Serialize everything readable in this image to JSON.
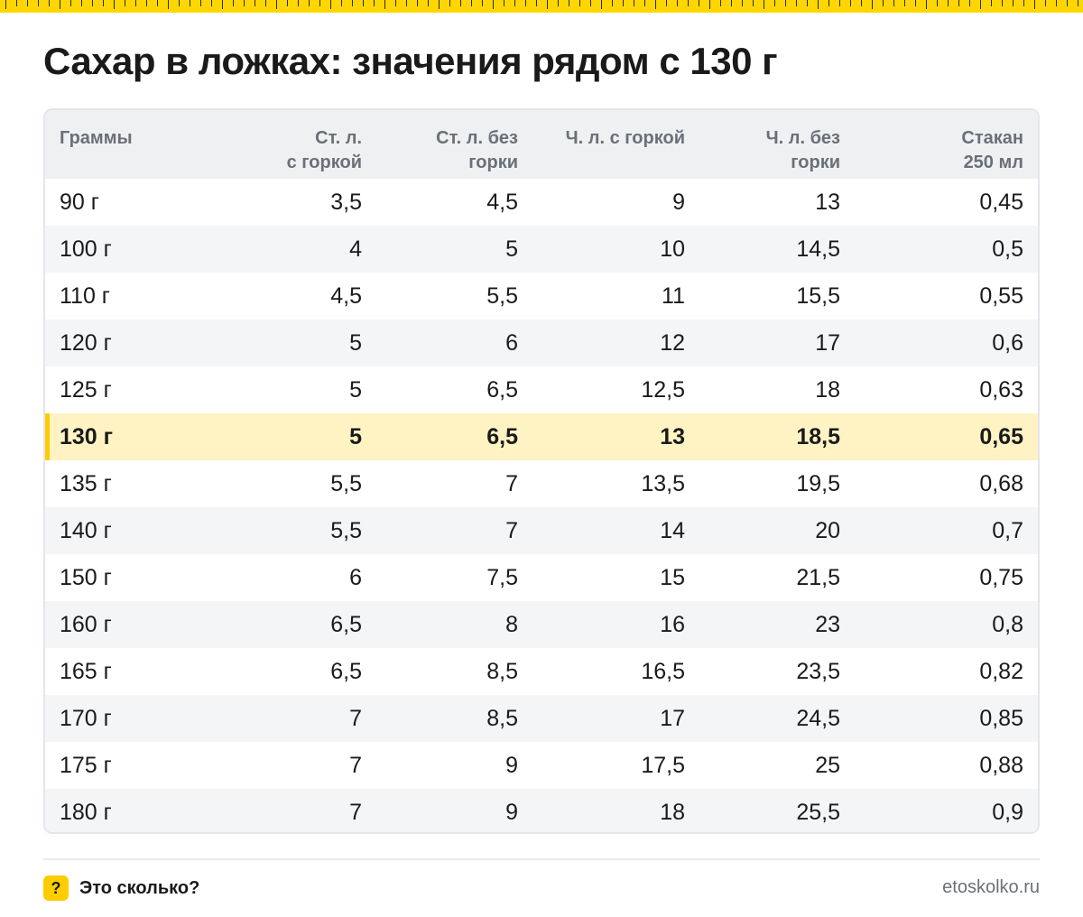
{
  "title": "Сахар в ложках: значения рядом с 130 г",
  "table": {
    "headers": [
      [
        "Граммы"
      ],
      [
        "Ст. л.",
        "с горкой"
      ],
      [
        "Ст. л. без",
        "горки"
      ],
      [
        "Ч. л. с горкой"
      ],
      [
        "Ч. л. без",
        "горки"
      ],
      [
        "Стакан",
        "250 мл"
      ]
    ],
    "highlighted_row": 5,
    "rows": [
      [
        "90 г",
        "3,5",
        "4,5",
        "9",
        "13",
        "0,45"
      ],
      [
        "100 г",
        "4",
        "5",
        "10",
        "14,5",
        "0,5"
      ],
      [
        "110 г",
        "4,5",
        "5,5",
        "11",
        "15,5",
        "0,55"
      ],
      [
        "120 г",
        "5",
        "6",
        "12",
        "17",
        "0,6"
      ],
      [
        "125 г",
        "5",
        "6,5",
        "12,5",
        "18",
        "0,63"
      ],
      [
        "130 г",
        "5",
        "6,5",
        "13",
        "18,5",
        "0,65"
      ],
      [
        "135 г",
        "5,5",
        "7",
        "13,5",
        "19,5",
        "0,68"
      ],
      [
        "140 г",
        "5,5",
        "7",
        "14",
        "20",
        "0,7"
      ],
      [
        "150 г",
        "6",
        "7,5",
        "15",
        "21,5",
        "0,75"
      ],
      [
        "160 г",
        "6,5",
        "8",
        "16",
        "23",
        "0,8"
      ],
      [
        "165 г",
        "6,5",
        "8,5",
        "16,5",
        "23,5",
        "0,82"
      ],
      [
        "170 г",
        "7",
        "8,5",
        "17",
        "24,5",
        "0,85"
      ],
      [
        "175 г",
        "7",
        "9",
        "17,5",
        "25",
        "0,88"
      ],
      [
        "180 г",
        "7",
        "9",
        "18",
        "25,5",
        "0,9"
      ]
    ]
  },
  "footer": {
    "badge": "?",
    "brand": "Это сколько?",
    "site": "etoskolko.ru"
  },
  "colors": {
    "accent": "#ffcc00",
    "highlight_row": "#fff3c4",
    "header_bg": "#eef0f2",
    "stripe": "#f4f5f7"
  }
}
